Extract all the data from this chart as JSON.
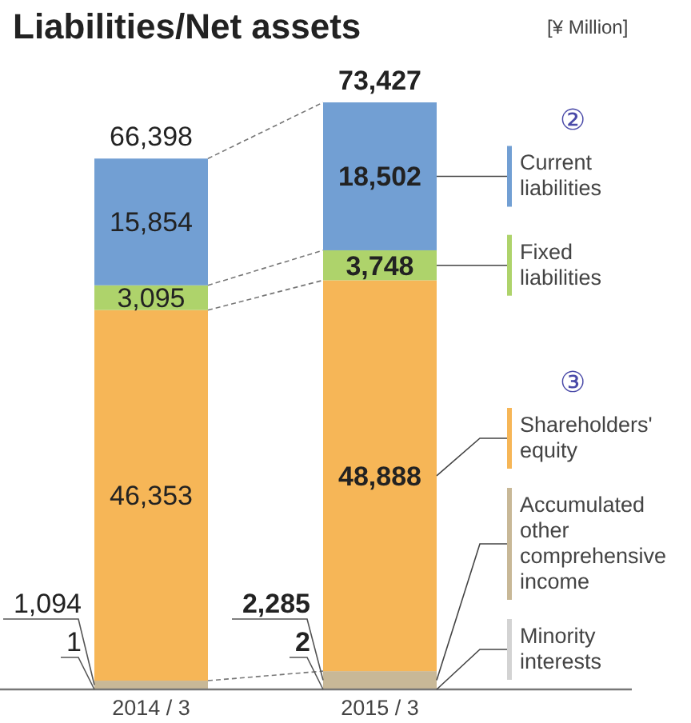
{
  "chart_data": {
    "type": "bar",
    "title": "Liabilities/Net assets",
    "subtitle": "[¥ Million]",
    "stacked": true,
    "categories": [
      "2014 / 3",
      "2015 / 3"
    ],
    "series": [
      {
        "name": "Minority interests",
        "color": "#d3d3d3",
        "values": [
          1,
          2
        ],
        "value_labels": [
          "1",
          "2"
        ]
      },
      {
        "name": "Accumulated other comprehensive income",
        "color": "#c8b897",
        "values": [
          1094,
          2285
        ],
        "value_labels": [
          "1,094",
          "2,285"
        ]
      },
      {
        "name": "Shareholders' equity",
        "color": "#f6b657",
        "values": [
          46353,
          48888
        ],
        "value_labels": [
          "46,353",
          "48,888"
        ]
      },
      {
        "name": "Fixed liabilities",
        "color": "#aed36b",
        "values": [
          3095,
          3748
        ],
        "value_labels": [
          "3,095",
          "3,748"
        ]
      },
      {
        "name": "Current liabilities",
        "color": "#729fd3",
        "values": [
          15854,
          18502
        ],
        "value_labels": [
          "15,854",
          "18,502"
        ]
      }
    ],
    "totals": [
      "66,398",
      "73,427"
    ],
    "legend": "right",
    "annotations": [
      "②",
      "③"
    ]
  }
}
